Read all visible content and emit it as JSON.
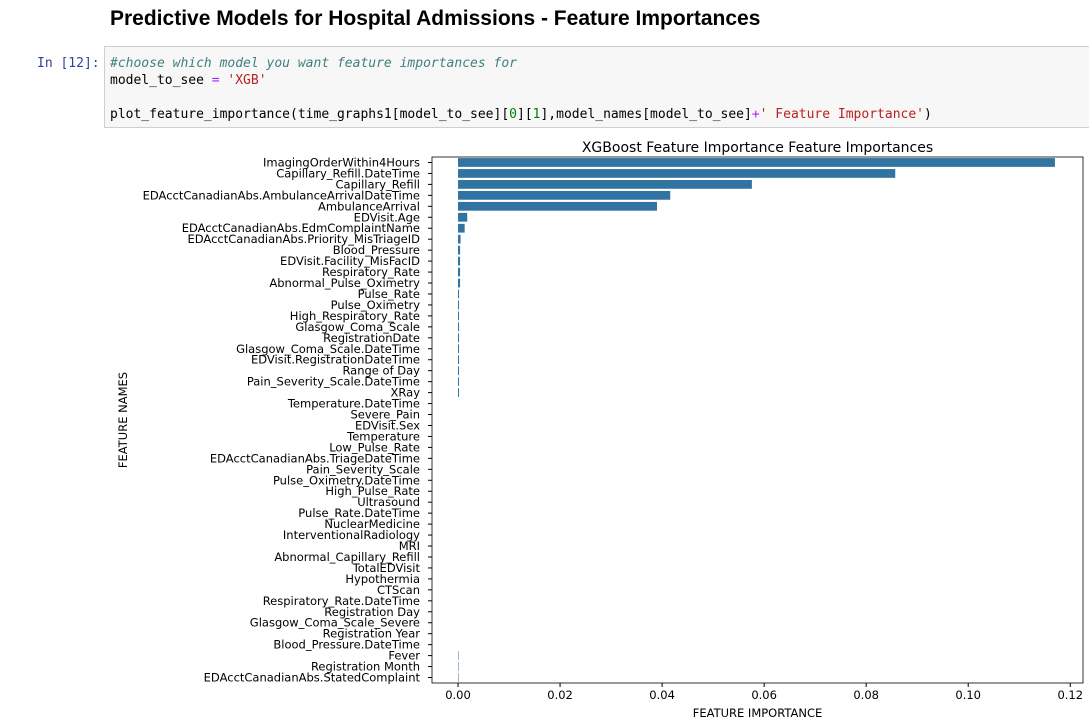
{
  "header": {
    "title": "Predictive Models for Hospital Admissions - Feature Importances"
  },
  "cell": {
    "prompt": "In [12]:",
    "lines": [
      [
        {
          "text": "#choose which model you want feature importances for",
          "color": "#408080"
        }
      ],
      [
        {
          "text": "model_to_see",
          "color": "#000000"
        },
        {
          "text": " = ",
          "color": "#aa22ff"
        },
        {
          "text": "'XGB'",
          "color": "#ba2121"
        }
      ],
      [
        {
          "text": "plot_feature_importance(time_graphs1[model_to_see][",
          "color": "#000000"
        },
        {
          "text": "0",
          "color": "#008000"
        },
        {
          "text": "][",
          "color": "#000000"
        },
        {
          "text": "1",
          "color": "#008000"
        },
        {
          "text": "],model_names[model_to_see]",
          "color": "#000000"
        },
        {
          "text": "+",
          "color": "#aa22ff"
        },
        {
          "text": "' Feature Importance'",
          "color": "#ba2121"
        },
        {
          "text": ")",
          "color": "#000000"
        }
      ]
    ]
  },
  "chart_data": {
    "type": "barh",
    "title": "XGBoost Feature Importance Feature Importances",
    "xlabel": "FEATURE IMPORTANCE",
    "ylabel": "FEATURE NAMES",
    "color": "#3274a1",
    "categories": [
      "ImagingOrderWithin4Hours",
      "Capillary_Refill.DateTime",
      "Capillary_Refill",
      "EDAcctCanadianAbs.AmbulanceArrivalDateTime",
      "AmbulanceArrival",
      "EDVisit.Age",
      "EDAcctCanadianAbs.EdmComplaintName",
      "EDAcctCanadianAbs.Priority_MisTriageID",
      "Blood_Pressure",
      "EDVisit.Facility_MisFacID",
      "Respiratory_Rate",
      "Abnormal_Pulse_Oximetry",
      "Pulse_Rate",
      "Pulse_Oximetry",
      "High_Respiratory_Rate",
      "Glasgow_Coma_Scale",
      "RegistrationDate",
      "Glasgow_Coma_Scale.DateTime",
      "EDVisit.RegistrationDateTime",
      "Range of Day",
      "Pain_Severity_Scale.DateTime",
      "XRay",
      "Temperature.DateTime",
      "Severe_Pain",
      "EDVisit.Sex",
      "Temperature",
      "Low_Pulse_Rate",
      "EDAcctCanadianAbs.TriageDateTime",
      "Pain_Severity_Scale",
      "Pulse_Oximetry.DateTime",
      "High_Pulse_Rate",
      "Ultrasound",
      "Pulse_Rate.DateTime",
      "NuclearMedicine",
      "InterventionalRadiology",
      "MRI",
      "Abnormal_Capillary_Refill",
      "TotalEDVisit",
      "Hypothermia",
      "CTScan",
      "Respiratory_Rate.DateTime",
      "Registration Day",
      "Glasgow_Coma_Scale_Severe",
      "Registration Year",
      "Blood_Pressure.DateTime",
      "Fever",
      "Registration Month",
      "EDAcctCanadianAbs.StatedComplaint"
    ],
    "values": [
      0.117,
      0.0857,
      0.0576,
      0.0416,
      0.039,
      0.0018,
      0.0013,
      0.0005,
      0.0004,
      0.0004,
      0.0004,
      0.0004,
      0.0002,
      0.0002,
      0.0002,
      0.0002,
      0.0002,
      0.0002,
      0.0002,
      0.0002,
      0.0002,
      0.0002,
      0,
      0,
      0,
      0,
      0,
      0,
      0,
      0,
      0,
      0,
      0,
      0,
      0,
      0,
      0,
      0,
      0,
      0,
      0,
      0,
      0,
      0,
      0,
      0.0001,
      0.0001,
      0.0001
    ],
    "xlim": [
      -0.0051,
      0.1225
    ],
    "xticks": [
      {
        "value": 0,
        "label": "0.00"
      },
      {
        "value": 0.02,
        "label": "0.02"
      },
      {
        "value": 0.04,
        "label": "0.04"
      },
      {
        "value": 0.06,
        "label": "0.06"
      },
      {
        "value": 0.08,
        "label": "0.08"
      },
      {
        "value": 0.1,
        "label": "0.10"
      },
      {
        "value": 0.12,
        "label": "0.12"
      }
    ]
  }
}
